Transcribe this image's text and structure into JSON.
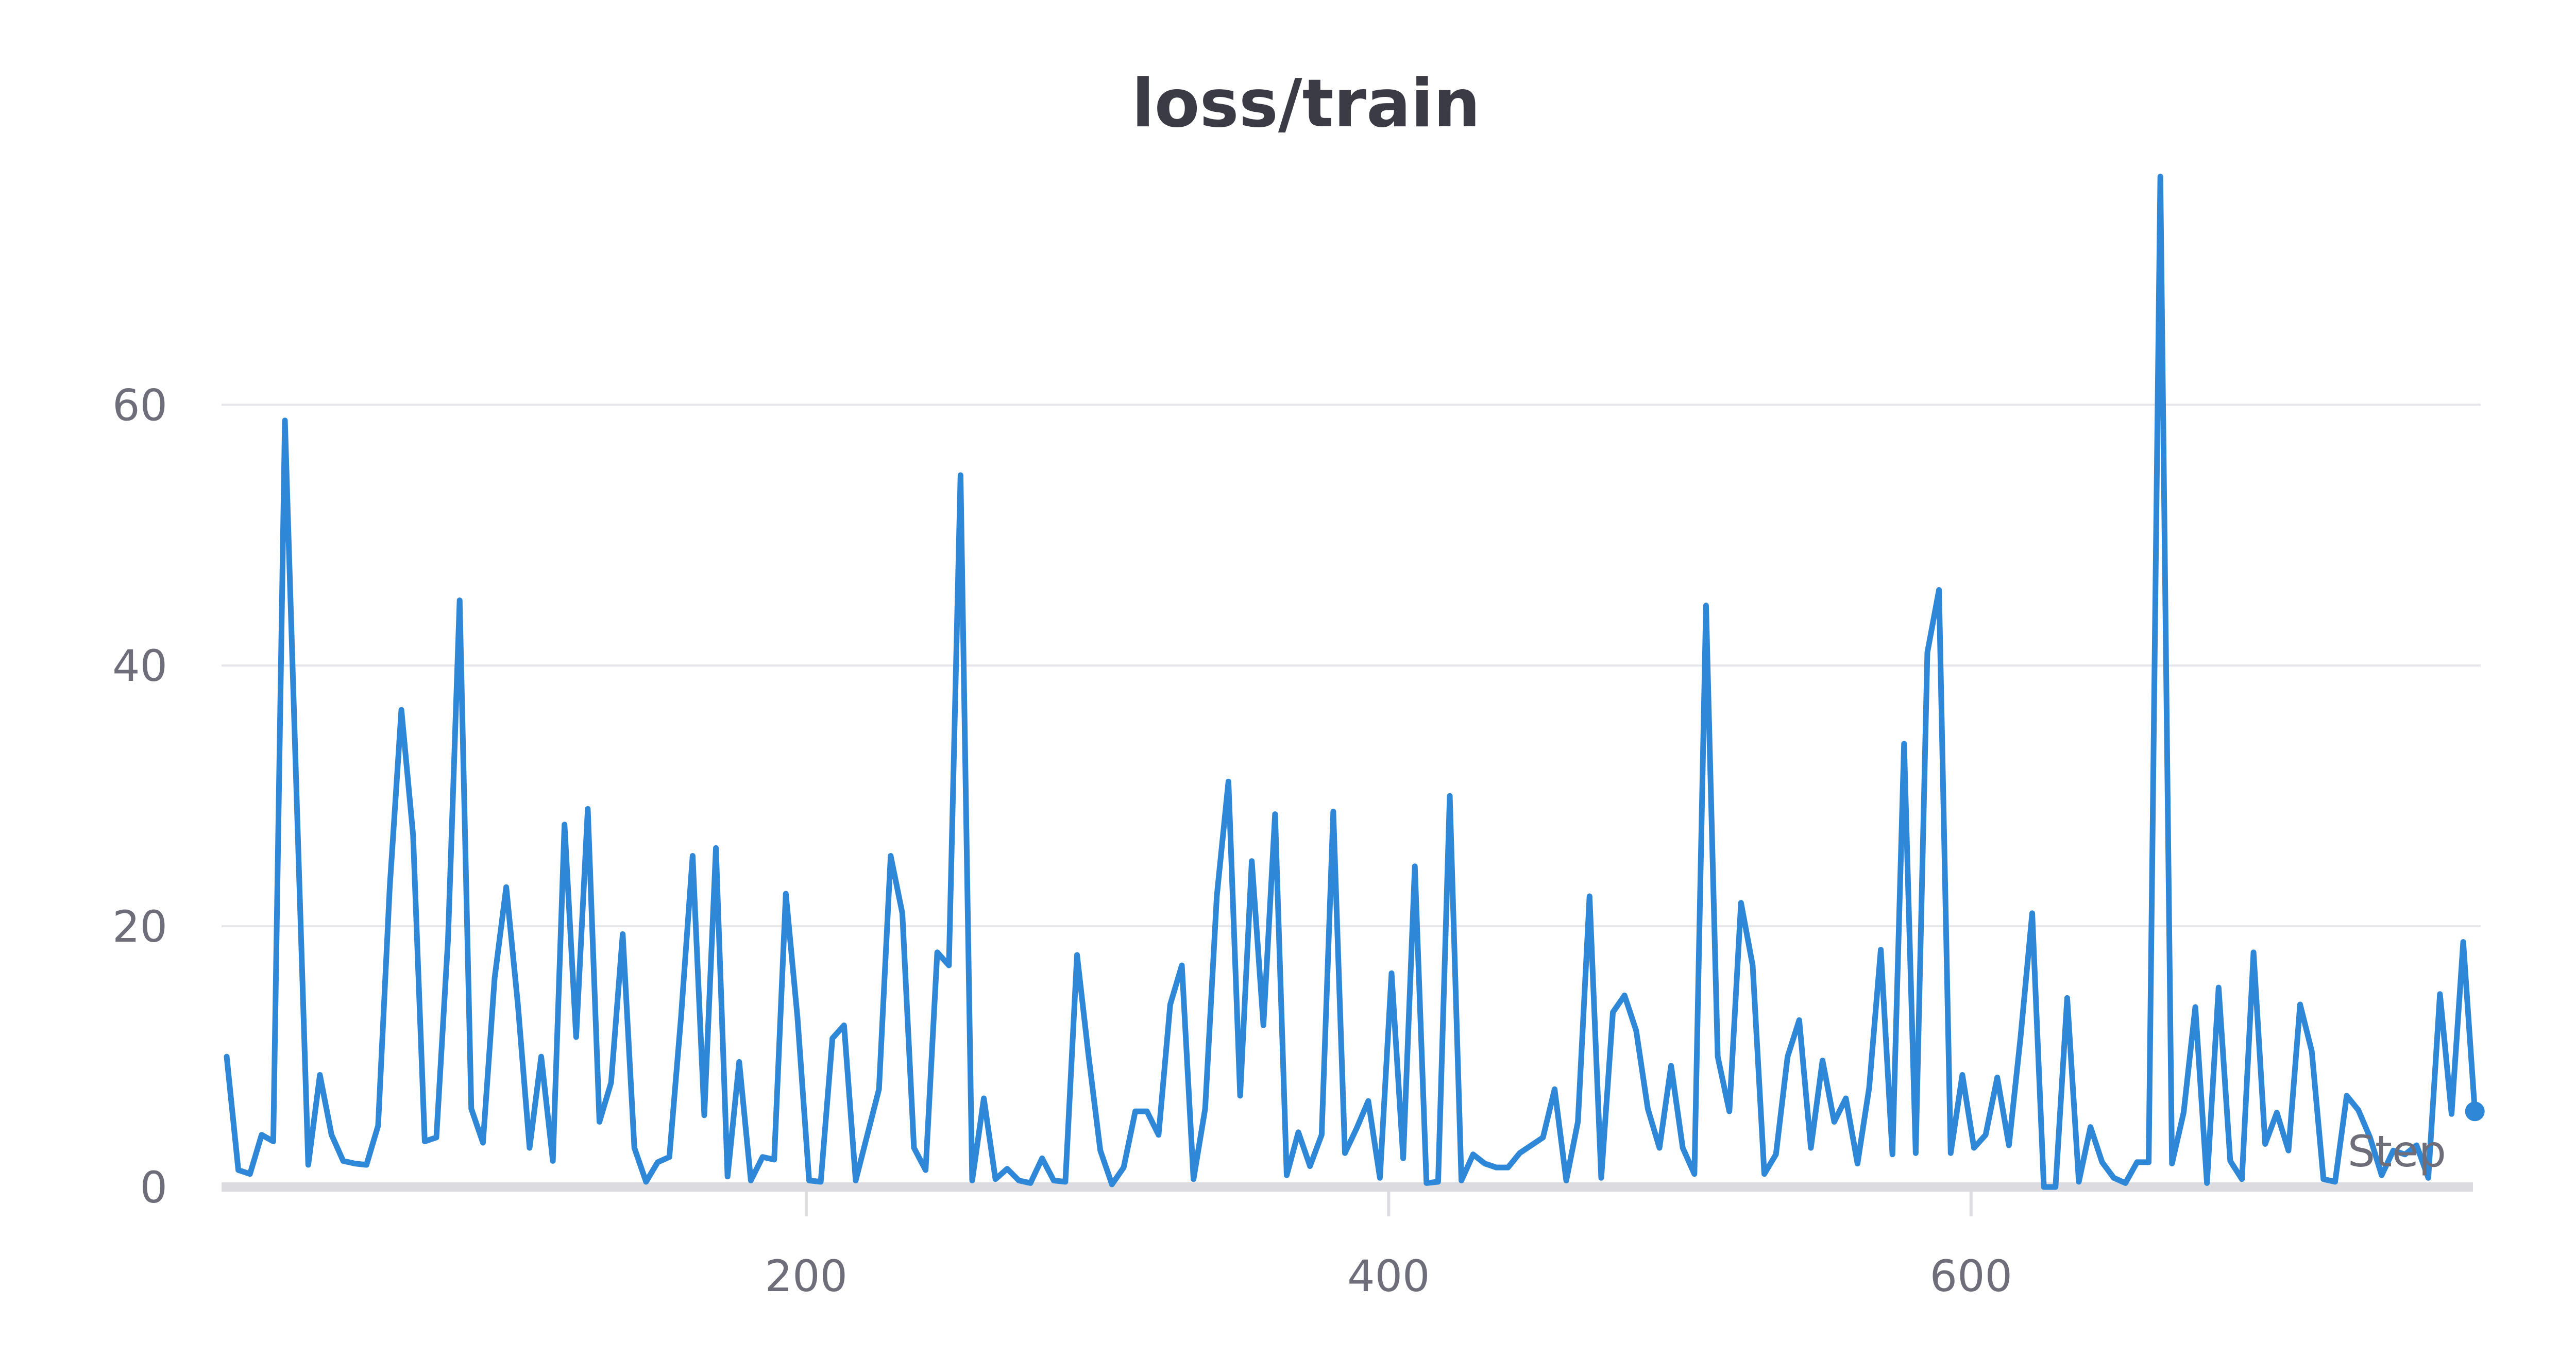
{
  "chart_data": {
    "type": "line",
    "title": "loss/train",
    "xlabel": "Step",
    "ylabel": "",
    "xlim": [
      1,
      775
    ],
    "ylim": [
      0,
      78
    ],
    "x_ticks": [
      200,
      400,
      600
    ],
    "y_ticks": [
      0,
      20,
      40,
      60
    ],
    "grid": true,
    "legend": "none",
    "series_color": "#2f87d8",
    "series": [
      {
        "x": [
          1,
          5,
          9,
          13,
          17,
          21,
          25,
          29,
          33,
          37,
          41,
          45,
          49,
          53,
          57,
          61,
          65,
          69,
          73,
          77,
          81,
          85,
          89,
          93,
          97,
          101,
          105,
          109,
          113,
          117,
          121,
          125,
          129,
          133,
          137,
          141,
          145,
          149,
          153,
          157,
          161,
          165,
          169,
          173,
          177,
          181,
          185,
          189,
          193,
          197,
          201,
          205,
          209,
          213,
          217,
          221,
          225,
          229,
          233,
          237,
          241,
          245,
          249,
          253,
          257,
          261,
          265,
          269,
          273,
          277,
          281,
          285,
          289,
          293,
          297,
          301,
          305,
          309,
          313,
          317,
          321,
          325,
          329,
          333,
          337,
          341,
          345,
          349,
          353,
          357,
          361,
          365,
          369,
          373,
          377,
          381,
          385,
          389,
          393,
          397,
          401,
          405,
          409,
          413,
          417,
          421,
          425,
          429,
          433,
          437,
          441,
          445,
          449,
          453,
          457,
          461,
          465,
          469,
          473,
          477,
          481,
          485,
          489,
          493,
          497,
          501,
          505,
          509,
          513,
          517,
          521,
          525,
          529,
          533,
          537,
          541,
          545,
          549,
          553,
          557,
          561,
          565,
          569,
          573,
          577,
          581,
          585,
          589,
          593,
          597,
          601,
          605,
          609,
          613,
          617,
          621,
          625,
          629,
          633,
          637,
          641,
          645,
          649,
          653,
          657,
          661,
          665,
          669,
          673,
          677,
          681,
          685,
          689,
          693,
          697,
          701,
          705,
          709,
          713,
          717,
          721,
          725,
          729,
          733,
          737,
          741,
          745,
          749,
          753,
          757,
          761,
          765,
          769,
          773
        ],
        "values": [
          10,
          1.3,
          1,
          4,
          3.5,
          58.8,
          30,
          1.7,
          8.6,
          4,
          2,
          1.8,
          1.7,
          4.7,
          23,
          36.6,
          27,
          3.5,
          3.8,
          19,
          45,
          6,
          3.4,
          16,
          23,
          14,
          3,
          10,
          2,
          27.8,
          11.5,
          29,
          5,
          8,
          19.4,
          3,
          0.4,
          1.9,
          2.3,
          13,
          25.4,
          5.5,
          26,
          0.8,
          9.6,
          0.5,
          2.3,
          2.1,
          22.5,
          13,
          0.5,
          0.4,
          11.4,
          12.4,
          0.5,
          4,
          7.5,
          25.4,
          21,
          3,
          1.3,
          18,
          17,
          54.6,
          0.5,
          6.8,
          0.6,
          1.4,
          0.5,
          0.3,
          2.2,
          0.5,
          0.4,
          17.8,
          10,
          2.8,
          0.2,
          1.5,
          5.8,
          5.8,
          4,
          14,
          17,
          0.6,
          6,
          22.3,
          31.1,
          7,
          25,
          12.4,
          28.6,
          0.9,
          4.2,
          1.6,
          4,
          28.8,
          2.6,
          4.5,
          6.6,
          0.7,
          16.4,
          2.2,
          24.6,
          0.3,
          0.4,
          30,
          0.5,
          2.5,
          1.8,
          1.5,
          1.5,
          2.6,
          3.2,
          3.8,
          7.5,
          0.5,
          5,
          22.3,
          0.7,
          13.4,
          14.7,
          12,
          6,
          3,
          9.3,
          3,
          1,
          44.6,
          10,
          5.8,
          21.8,
          17,
          1,
          2.5,
          10,
          12.8,
          3,
          9.7,
          5,
          6.8,
          1.8,
          7.6,
          18.2,
          2.5,
          34,
          2.6,
          41,
          45.8,
          2.6,
          8.6,
          3,
          4,
          8.4,
          3.2,
          11.5,
          21,
          0,
          0,
          14.5,
          0.4,
          4.6,
          1.9,
          0.7,
          0.3,
          1.9,
          1.9,
          77.5,
          1.8,
          5.7,
          13.8,
          0.3,
          15.3,
          2,
          0.6,
          18,
          3.3,
          5.7,
          2.8,
          14,
          10.4,
          0.6,
          0.4,
          7,
          5.9,
          3.8,
          0.9,
          2.8,
          2.5,
          3.2,
          0.7,
          14.8,
          5.6,
          18.8,
          5.8
        ]
      }
    ]
  }
}
